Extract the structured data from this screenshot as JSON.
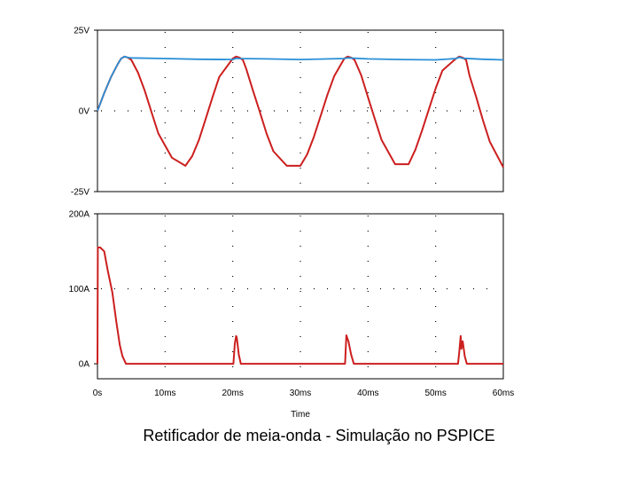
{
  "caption": "Retificador de meia-onda  -  Simulação no PSPICE",
  "colors": {
    "series_red": "#cc1f1f",
    "series_blue": "#2a8fd6",
    "axis": "#000000"
  },
  "chart_data": [
    {
      "type": "line",
      "panel": "voltage",
      "xlim": [
        0,
        60
      ],
      "ylim": [
        -25,
        25
      ],
      "y_ticks": [
        {
          "value": 25,
          "label": "25V"
        },
        {
          "value": 0,
          "label": "0V"
        },
        {
          "value": -25,
          "label": "-25V"
        }
      ],
      "grid": true,
      "series": [
        {
          "color": "#cc1f1f",
          "x": [
            0,
            1,
            2,
            3,
            3.5,
            4,
            4.5,
            5,
            6,
            7,
            8,
            9,
            11,
            13,
            14,
            15,
            16,
            17,
            18,
            20,
            20.5,
            21,
            21.5,
            22,
            23,
            24,
            25,
            26,
            28,
            30,
            31,
            32,
            33,
            34,
            35,
            36.5,
            37,
            37.5,
            38,
            39,
            40,
            41,
            42,
            44,
            46,
            47,
            48,
            49,
            50,
            51,
            53,
            53.5,
            54,
            54.5,
            55,
            56,
            57,
            58,
            60
          ],
          "y": [
            0,
            5.5,
            10.5,
            14.5,
            16.2,
            16.8,
            16.5,
            15.8,
            11.8,
            6.2,
            -0.5,
            -7,
            -14.5,
            -17,
            -14,
            -9,
            -2.5,
            4.2,
            10.5,
            16.2,
            16.8,
            16.5,
            15.8,
            13,
            6.2,
            -0.3,
            -7,
            -12.5,
            -17,
            -17,
            -13.5,
            -8,
            -1.5,
            5,
            10.8,
            16.2,
            16.8,
            16.5,
            15.8,
            11,
            4.2,
            -2.5,
            -9,
            -16.5,
            -16.5,
            -12,
            -6,
            0.5,
            7,
            12.5,
            16.2,
            16.8,
            16.5,
            15.8,
            11,
            4.2,
            -3,
            -9.5,
            -17.5
          ]
        },
        {
          "color": "#2a8fd6",
          "x": [
            0,
            1,
            2,
            3,
            3.5,
            4,
            4.5,
            5,
            10,
            15,
            20,
            20.5,
            21,
            25,
            30,
            36.5,
            37,
            40,
            45,
            50,
            53,
            53.5,
            54,
            57,
            60
          ],
          "y": [
            0,
            5.5,
            10.5,
            14.5,
            16.2,
            16.8,
            16.5,
            16.4,
            16.2,
            16,
            15.9,
            16.3,
            16.2,
            16.1,
            15.9,
            16.2,
            16.4,
            16.1,
            15.9,
            15.8,
            16.2,
            16.6,
            16.3,
            16,
            15.8
          ]
        }
      ]
    },
    {
      "type": "line",
      "panel": "current",
      "xlim": [
        0,
        60
      ],
      "ylim": [
        -20,
        200
      ],
      "y_ticks": [
        {
          "value": 200,
          "label": "200A"
        },
        {
          "value": 100,
          "label": "100A"
        },
        {
          "value": 0,
          "label": "0A"
        }
      ],
      "x_ticks": [
        {
          "value": 0,
          "label": "0s"
        },
        {
          "value": 10,
          "label": "10ms"
        },
        {
          "value": 20,
          "label": "20ms"
        },
        {
          "value": 30,
          "label": "30ms"
        },
        {
          "value": 40,
          "label": "40ms"
        },
        {
          "value": 50,
          "label": "50ms"
        },
        {
          "value": 60,
          "label": "60ms"
        }
      ],
      "xlabel": "Time",
      "grid": true,
      "series": [
        {
          "color": "#cc1f1f",
          "x": [
            0,
            0.05,
            0.4,
            1,
            1.5,
            2.2,
            2.8,
            3.3,
            3.7,
            4.2,
            10,
            20,
            20.1,
            20.3,
            20.5,
            20.6,
            20.9,
            21.2,
            25,
            30,
            36.6,
            36.8,
            36.9,
            37.1,
            37.5,
            37.9,
            40,
            45,
            53.3,
            53.5,
            53.7,
            53.8,
            54,
            54.3,
            54.6,
            60
          ],
          "y": [
            0,
            155,
            155,
            150,
            125,
            95,
            55,
            25,
            10,
            0,
            0,
            0,
            0,
            27,
            37,
            35,
            12,
            0,
            0,
            0,
            0,
            38,
            35,
            30,
            12,
            0,
            0,
            0,
            0,
            17,
            37,
            20,
            30,
            10,
            0,
            0
          ]
        }
      ]
    }
  ]
}
